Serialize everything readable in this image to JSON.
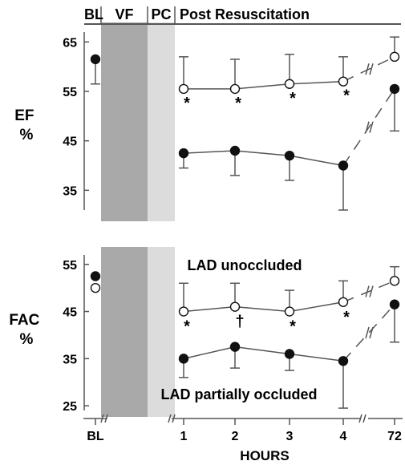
{
  "chart_data": [
    {
      "type": "line",
      "title": "",
      "ylabel": "EF %",
      "ylabel_lines": [
        "EF",
        "%"
      ],
      "ylim": [
        31,
        67
      ],
      "yticks": [
        35,
        45,
        55,
        65
      ],
      "xlabel": "HOURS",
      "x_ticks": [
        "BL",
        "1",
        "2",
        "3",
        "4",
        "72"
      ],
      "phases": [
        "BL",
        "VF",
        "PC",
        "Post Resuscitation"
      ],
      "series": [
        {
          "style": "open circles",
          "x": [
            "BL",
            "1",
            "2",
            "3",
            "4",
            "72"
          ],
          "values": [
            null,
            55.5,
            55.5,
            56.5,
            57,
            62
          ],
          "error": [
            null,
            6.5,
            6,
            6,
            5,
            4
          ]
        },
        {
          "style": "filled circles",
          "x": [
            "BL",
            "1",
            "2",
            "3",
            "4",
            "72"
          ],
          "values": [
            61.5,
            42.5,
            43,
            42,
            40,
            55.5
          ],
          "error": [
            5,
            3,
            5,
            5,
            9,
            8.5
          ]
        }
      ],
      "significance": [
        {
          "x": "1",
          "symbol": "*"
        },
        {
          "x": "2",
          "symbol": "*"
        },
        {
          "x": "3",
          "symbol": "*"
        },
        {
          "x": "4",
          "symbol": "*"
        }
      ]
    },
    {
      "type": "line",
      "title": "",
      "ylabel": "FAC %",
      "ylabel_lines": [
        "FAC",
        "%"
      ],
      "ylim": [
        24,
        57
      ],
      "yticks": [
        25,
        35,
        45,
        55
      ],
      "xlabel": "HOURS",
      "x_ticks": [
        "BL",
        "1",
        "2",
        "3",
        "4",
        "72"
      ],
      "annotations": [
        "LAD unoccluded",
        "LAD partially occluded"
      ],
      "series": [
        {
          "style": "open circles",
          "x": [
            "BL",
            "1",
            "2",
            "3",
            "4",
            "72"
          ],
          "values": [
            50,
            45,
            46,
            45,
            47,
            51.5
          ],
          "error": [
            null,
            6,
            5,
            4.5,
            4.5,
            3
          ]
        },
        {
          "style": "filled circles",
          "x": [
            "BL",
            "1",
            "2",
            "3",
            "4",
            "72"
          ],
          "values": [
            52.5,
            35,
            37.5,
            36,
            34.5,
            46.5
          ],
          "error": [
            null,
            4,
            4.5,
            3.5,
            10,
            8
          ]
        }
      ],
      "significance": [
        {
          "x": "1",
          "symbol": "*"
        },
        {
          "x": "2",
          "symbol": "†"
        },
        {
          "x": "3",
          "symbol": "*"
        },
        {
          "x": "4",
          "symbol": "*"
        }
      ]
    }
  ],
  "colors": {
    "vf_band": "#a9a9a9",
    "pc_band": "#dcdcdc",
    "lines": "#555555",
    "markers": "#111111"
  }
}
